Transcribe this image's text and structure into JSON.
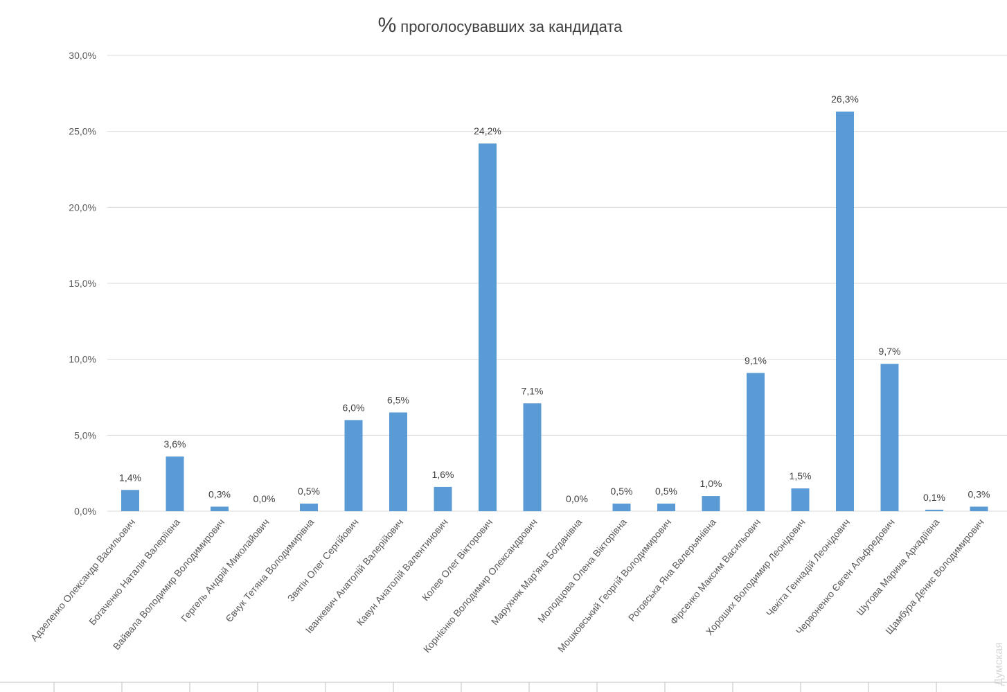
{
  "chart_data": {
    "type": "bar",
    "title_symbol": "%",
    "title_text": "проголосувавших за кандидата",
    "ylim": [
      0,
      30
    ],
    "ytick_values": [
      0,
      5,
      10,
      15,
      20,
      25,
      30
    ],
    "ytick_labels": [
      "0,0%",
      "5,0%",
      "10,0%",
      "15,0%",
      "20,0%",
      "25,0%",
      "30,0%"
    ],
    "grid": true,
    "bar_color": "#5b9bd5",
    "categories": [
      "Адзеленко Олександр Васильович",
      "Богаченко Наталія Валеріївна",
      "Вайвала Володимир Володимирович",
      "Гергель Андрій Миколайович",
      "Євчук Тетяна Володимирівна",
      "Звягін Олег Сергійович",
      "Іванкевич Анатолій Валерійович",
      "Кавун Анатолій Валентинович",
      "Колев Олег Вікторович",
      "Корнієнко Володимир Олександрович",
      "Марухняк Мар'яна Богданівна",
      "Молодцова Олена Вікторівна",
      "Мошковський Георгій Володимирович",
      "Роговська Яна Валерьянівна",
      "Фірсенко Максим Васильович",
      "Хороших Володимир Леонідович",
      "Чекіта Геннадій Леонідович",
      "Червоненко Євген Альфредович",
      "Шутова Марина Аркадіївна",
      "Щамбура Денис Володимирович"
    ],
    "values": [
      1.4,
      3.6,
      0.3,
      0.0,
      0.5,
      6.0,
      6.5,
      1.6,
      24.2,
      7.1,
      0.0,
      0.5,
      0.5,
      1.0,
      9.1,
      1.5,
      26.3,
      9.7,
      0.1,
      0.3
    ],
    "data_labels": [
      "1,4%",
      "3,6%",
      "0,3%",
      "0,0%",
      "0,5%",
      "6,0%",
      "6,5%",
      "1,6%",
      "24,2%",
      "7,1%",
      "0,0%",
      "0,5%",
      "0,5%",
      "1,0%",
      "9,1%",
      "1,5%",
      "26,3%",
      "9,7%",
      "0,1%",
      "0,3%"
    ]
  },
  "watermark": "Думская"
}
